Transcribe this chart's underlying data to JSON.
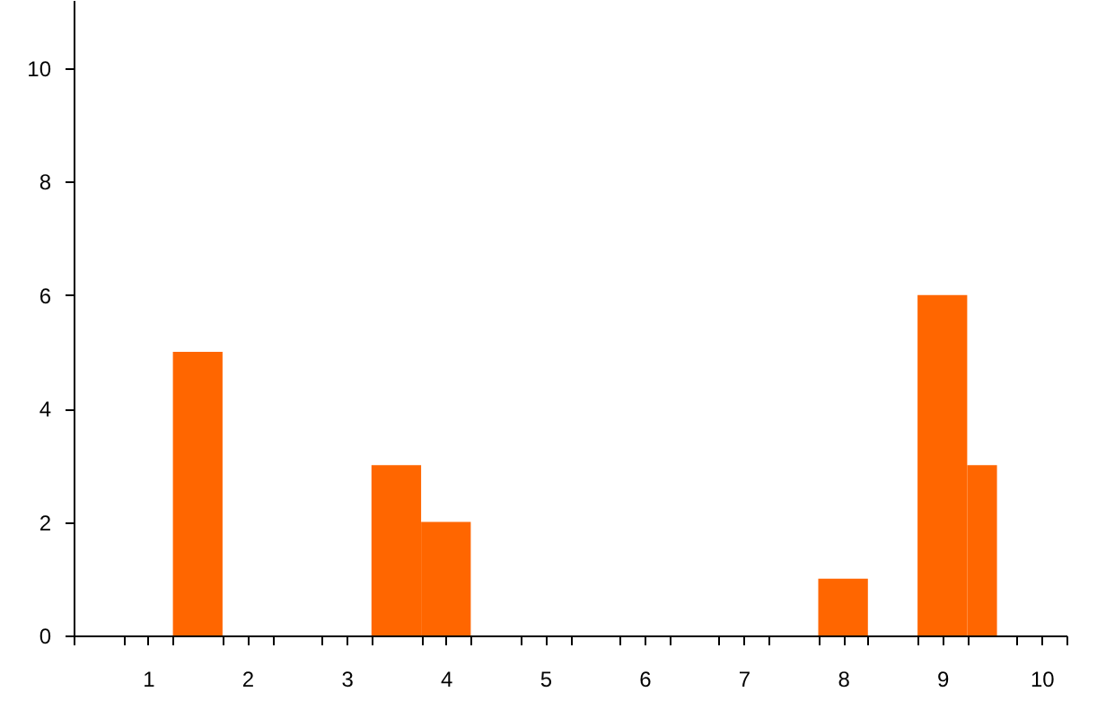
{
  "chart_data": {
    "type": "histogram",
    "bins": [
      1.25,
      1.75,
      3.25,
      3.75,
      4.25,
      7.75,
      8.25,
      8.75,
      9.25,
      9.55
    ],
    "values": [
      5,
      0,
      3,
      2,
      0,
      1,
      0,
      6,
      3
    ],
    "color": "#ff6600",
    "xlim": [
      0.25,
      10.25
    ],
    "xticks": [
      {
        "value": 0.25,
        "label": null
      },
      {
        "value": 0.75,
        "label": null
      },
      1,
      {
        "value": 1.25,
        "label": null
      },
      {
        "value": 1.75,
        "label": null
      },
      2,
      {
        "value": 2.25,
        "label": null
      },
      {
        "value": 2.75,
        "label": null
      },
      3,
      {
        "value": 3.25,
        "label": null
      },
      {
        "value": 3.75,
        "label": null
      },
      4,
      {
        "value": 4.25,
        "label": null
      },
      {
        "value": 4.75,
        "label": null
      },
      5,
      {
        "value": 5.25,
        "label": null
      },
      {
        "value": 5.75,
        "label": null
      },
      6,
      {
        "value": 6.25,
        "label": null
      },
      {
        "value": 6.75,
        "label": null
      },
      7,
      {
        "value": 7.25,
        "label": null
      },
      {
        "value": 7.75,
        "label": null
      },
      8,
      {
        "value": 8.25,
        "label": null
      },
      {
        "value": 8.75,
        "label": null
      },
      9,
      {
        "value": 9.25,
        "label": null
      },
      {
        "value": 9.75,
        "label": null
      },
      10,
      {
        "value": 10.25,
        "label": null
      }
    ],
    "ylim": [
      0,
      11.2
    ],
    "yticks": [
      0,
      2,
      4,
      6,
      8,
      10
    ],
    "grid": false
  }
}
